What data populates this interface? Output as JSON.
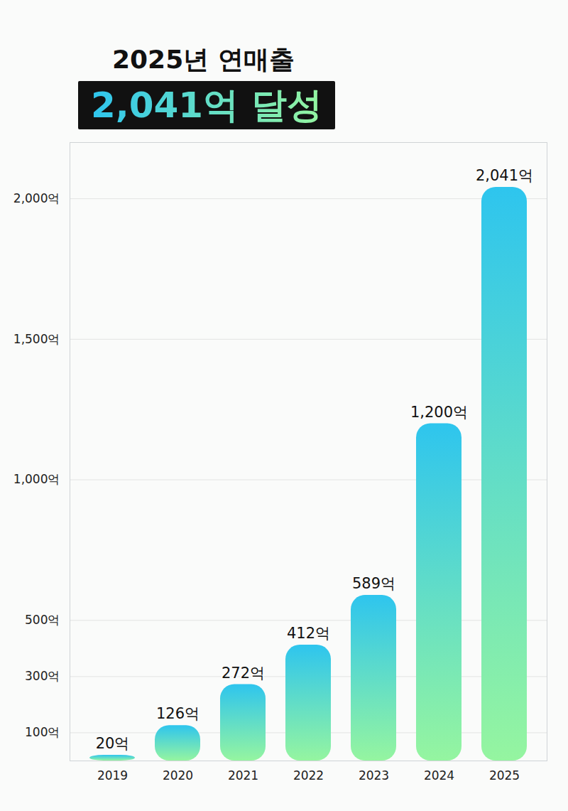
{
  "chart_data": {
    "type": "bar",
    "title": "2025년 연매출",
    "subtitle": "2,041억 달성",
    "categories": [
      "2019",
      "2020",
      "2021",
      "2022",
      "2023",
      "2024",
      "2025"
    ],
    "values": [
      20,
      126,
      272,
      412,
      589,
      1200,
      2041
    ],
    "value_labels": [
      "20억",
      "126억",
      "272억",
      "412억",
      "589억",
      "1,200억",
      "2,041억"
    ],
    "color": "#2ec5ee",
    "ylim": [
      0,
      2200
    ],
    "yticks": [
      {
        "value": 100,
        "label": "100억"
      },
      {
        "value": 300,
        "label": "300억"
      },
      {
        "value": 500,
        "label": "500억"
      },
      {
        "value": 1000,
        "label": "1,000억"
      },
      {
        "value": 1500,
        "label": "1,500억"
      },
      {
        "value": 2000,
        "label": "2,000억"
      }
    ],
    "grid": true,
    "data_labels": true
  }
}
